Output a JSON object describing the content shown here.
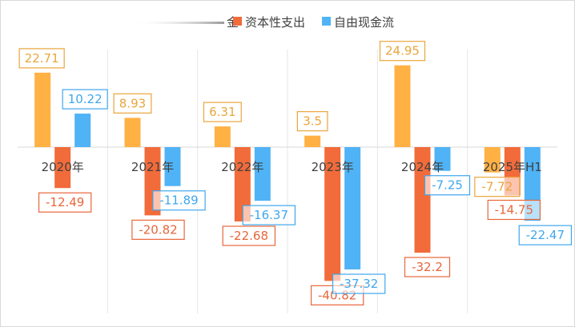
{
  "chart_data": {
    "type": "bar",
    "categories": [
      "2020年",
      "2021年",
      "2022年",
      "2023年",
      "2024年",
      "2025年H1"
    ],
    "series": [
      {
        "name": "金",
        "color": "#FFB144",
        "values": [
          22.71,
          8.93,
          6.31,
          3.5,
          24.95,
          -7.72
        ]
      },
      {
        "name": "资本性支出",
        "color": "#F26B3A",
        "values": [
          -12.49,
          -20.82,
          -22.68,
          -40.82,
          -32.2,
          -14.75
        ]
      },
      {
        "name": "自由现金流",
        "color": "#4FB3F6",
        "values": [
          10.22,
          -11.89,
          -16.37,
          -37.32,
          -7.25,
          -22.47
        ]
      }
    ],
    "ylim": [
      -47,
      27
    ],
    "grid": "vertical",
    "legend": "top",
    "title": "",
    "xlabel": "",
    "ylabel": ""
  }
}
